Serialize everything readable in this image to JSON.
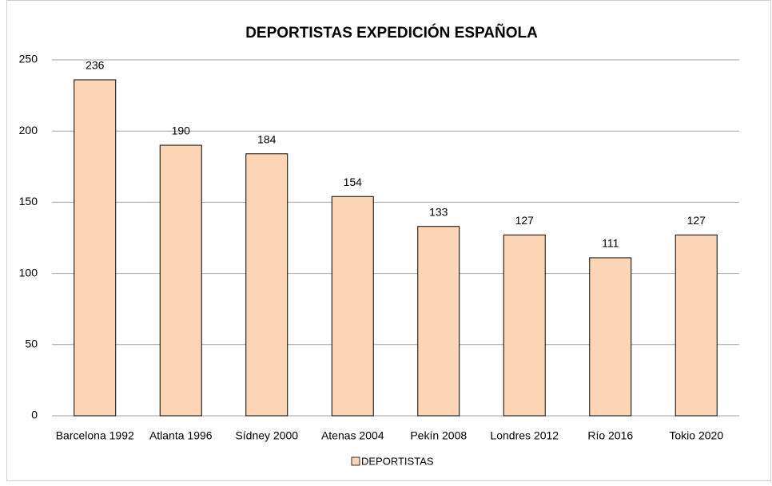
{
  "chart_data": {
    "type": "bar",
    "title": "DEPORTISTAS EXPEDICIÓN ESPAÑOLA",
    "categories": [
      "Barcelona 1992",
      "Atlanta 1996",
      "Sídney 2000",
      "Atenas 2004",
      "Pekín 2008",
      "Londres 2012",
      "Río 2016",
      "Tokio 2020"
    ],
    "series": [
      {
        "name": "DEPORTISTAS",
        "color": "#fbd5b5",
        "values": [
          236,
          190,
          184,
          154,
          133,
          127,
          111,
          127
        ]
      }
    ],
    "ylim": [
      0,
      250
    ],
    "yticks": [
      0,
      50,
      100,
      150,
      200,
      250
    ],
    "grid": true,
    "legend": "bottom"
  }
}
